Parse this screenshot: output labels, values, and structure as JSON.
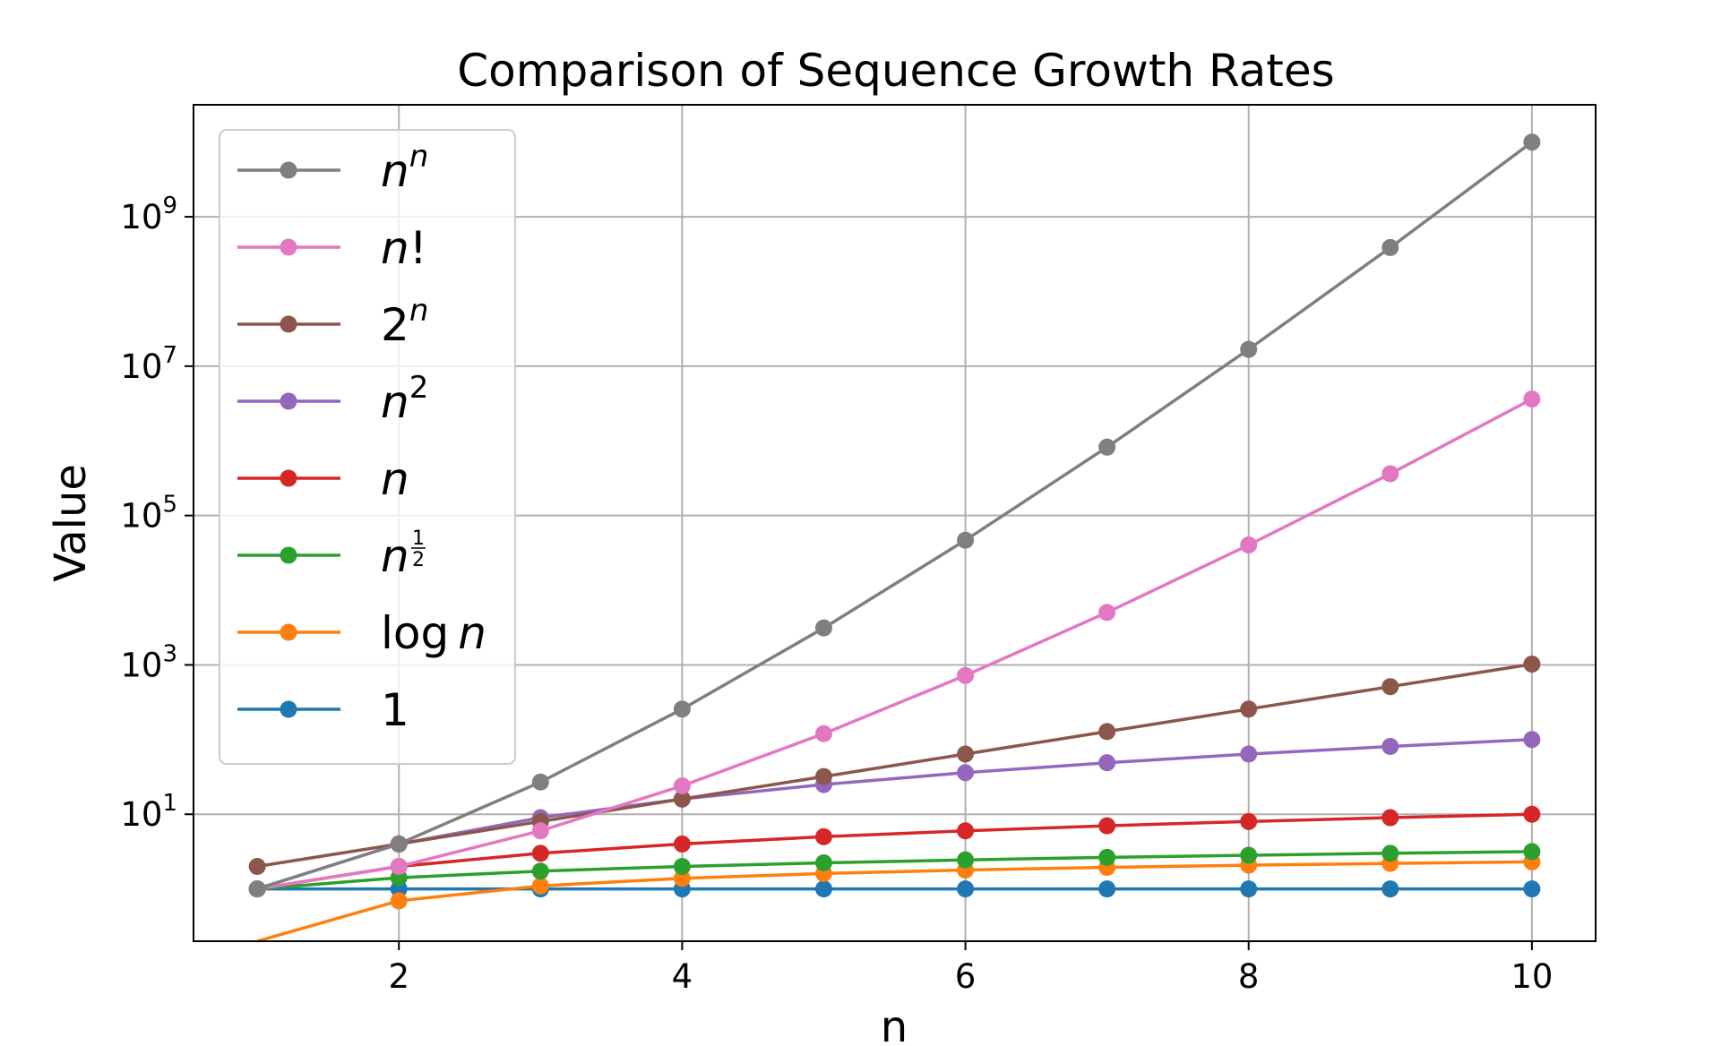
{
  "chart_data": {
    "type": "line",
    "title": "Comparison of Sequence Growth Rates",
    "xlabel": "n",
    "ylabel": "Value",
    "y_scale": "log",
    "grid": true,
    "legend_position": "upper-left",
    "x": [
      1,
      2,
      3,
      4,
      5,
      6,
      7,
      8,
      9,
      10
    ],
    "xlim": [
      0.55,
      10.45
    ],
    "ylim_log10": [
      -0.7,
      10.5
    ],
    "x_ticks": [
      2,
      4,
      6,
      8,
      10
    ],
    "x_tick_labels": [
      "2",
      "4",
      "6",
      "8",
      "10"
    ],
    "y_ticks": [
      10,
      1000,
      100000,
      10000000,
      1000000000
    ],
    "y_tick_labels": [
      {
        "base": "10",
        "exp": "1"
      },
      {
        "base": "10",
        "exp": "3"
      },
      {
        "base": "10",
        "exp": "5"
      },
      {
        "base": "10",
        "exp": "7"
      },
      {
        "base": "10",
        "exp": "9"
      }
    ],
    "series": [
      {
        "key": "nn",
        "legend_base": "n",
        "legend_sup": "n",
        "color": "#7f7f7f",
        "values": [
          1,
          4,
          27,
          256,
          3125,
          46656,
          823543,
          16777216,
          387420489,
          10000000000
        ]
      },
      {
        "key": "nfact",
        "legend_base": "n",
        "legend_suffix": "!",
        "color": "#e377c2",
        "values": [
          1,
          2,
          6,
          24,
          120,
          720,
          5040,
          40320,
          362880,
          3628800
        ]
      },
      {
        "key": "twon",
        "legend_base": "2",
        "legend_sup": "n",
        "color": "#8c564b",
        "values": [
          2,
          4,
          8,
          16,
          32,
          64,
          128,
          256,
          512,
          1024
        ]
      },
      {
        "key": "nsq",
        "legend_base": "n",
        "legend_sup": "2",
        "color": "#9467bd",
        "values": [
          1,
          4,
          9,
          16,
          25,
          36,
          49,
          64,
          81,
          100
        ]
      },
      {
        "key": "n",
        "legend_base": "n",
        "color": "#d62728",
        "values": [
          1,
          2,
          3,
          4,
          5,
          6,
          7,
          8,
          9,
          10
        ]
      },
      {
        "key": "sqrt",
        "legend_base": "n",
        "legend_frac_num": "1",
        "legend_frac_den": "2",
        "color": "#2ca02c",
        "values": [
          1,
          1.414,
          1.732,
          2,
          2.236,
          2.449,
          2.646,
          2.828,
          3,
          3.162
        ]
      },
      {
        "key": "log",
        "legend_prefix": "log",
        "legend_base": "n",
        "color": "#ff7f0e",
        "values": [
          0,
          0.693,
          1.099,
          1.386,
          1.609,
          1.792,
          1.946,
          2.079,
          2.197,
          2.303
        ]
      },
      {
        "key": "one",
        "legend_base": "1",
        "legend_upright": true,
        "color": "#1f77b4",
        "values": [
          1,
          1,
          1,
          1,
          1,
          1,
          1,
          1,
          1,
          1
        ]
      }
    ]
  }
}
